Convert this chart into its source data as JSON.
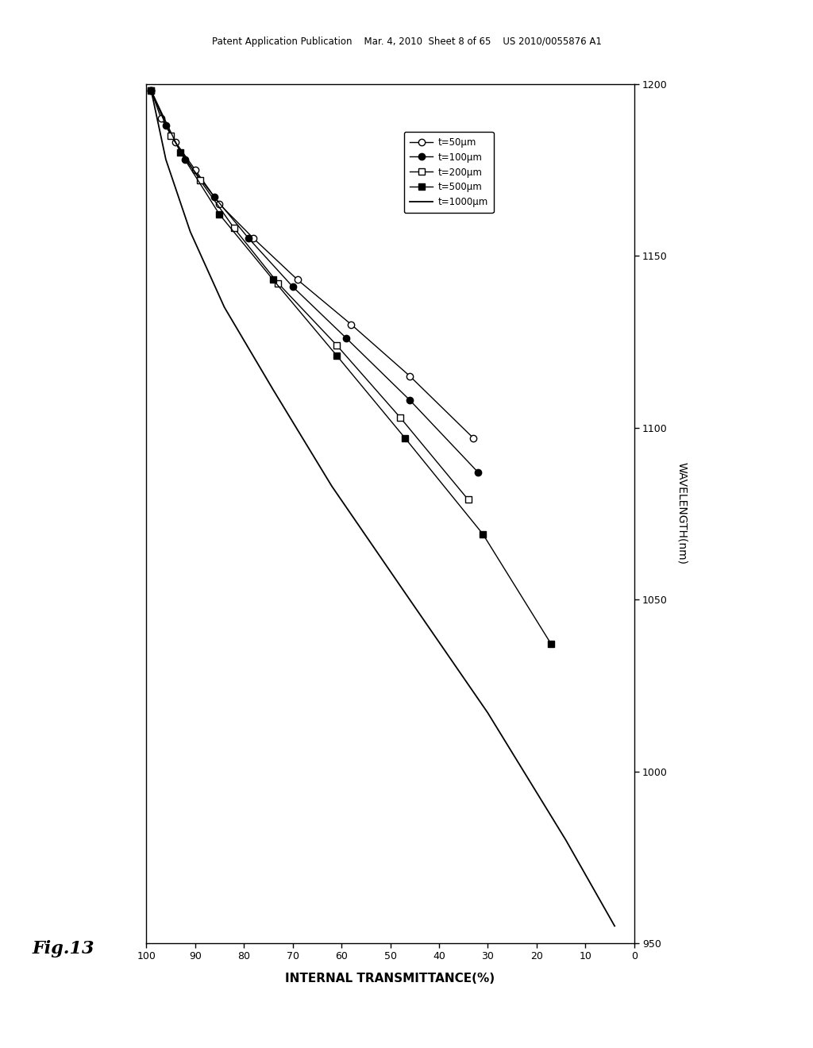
{
  "title_header": "Patent Application Publication    Mar. 4, 2010  Sheet 8 of 65    US 2010/0055876 A1",
  "fig_label": "Fig.13",
  "xlabel": "INTERNAL TRANSMITTANCE(%)",
  "ylabel": "WAVELENGTH(nm)",
  "xlim": [
    100,
    0
  ],
  "ylim": [
    950,
    1200
  ],
  "xticks": [
    100,
    90,
    80,
    70,
    60,
    50,
    40,
    30,
    20,
    10,
    0
  ],
  "xticklabels": [
    "100",
    "90",
    "80",
    "70",
    "60",
    "50",
    "40",
    "30",
    "20",
    "10",
    "0"
  ],
  "yticks": [
    950,
    1000,
    1050,
    1100,
    1150,
    1200
  ],
  "yticklabels": [
    "950",
    "1000",
    "1050",
    "1100",
    "1150",
    "1200"
  ],
  "background_color": "#ffffff",
  "series": [
    {
      "label": "t=50μm",
      "marker": "o",
      "fillstyle": "none",
      "color": "black",
      "linewidth": 1.0,
      "markersize": 6,
      "transmittance": [
        99,
        97,
        94,
        90,
        85,
        78,
        69,
        58,
        46,
        33
      ],
      "wavelength": [
        1198,
        1190,
        1183,
        1175,
        1165,
        1155,
        1143,
        1130,
        1115,
        1097
      ]
    },
    {
      "label": "t=100μm",
      "marker": "o",
      "fillstyle": "full",
      "color": "black",
      "linewidth": 1.0,
      "markersize": 6,
      "transmittance": [
        99,
        96,
        92,
        86,
        79,
        70,
        59,
        46,
        32
      ],
      "wavelength": [
        1198,
        1188,
        1178,
        1167,
        1155,
        1141,
        1126,
        1108,
        1087
      ]
    },
    {
      "label": "t=200μm",
      "marker": "s",
      "fillstyle": "none",
      "color": "black",
      "linewidth": 1.0,
      "markersize": 6,
      "transmittance": [
        99,
        95,
        89,
        82,
        73,
        61,
        48,
        34
      ],
      "wavelength": [
        1198,
        1185,
        1172,
        1158,
        1142,
        1124,
        1103,
        1079
      ]
    },
    {
      "label": "t=500μm",
      "marker": "s",
      "fillstyle": "full",
      "color": "black",
      "linewidth": 1.0,
      "markersize": 6,
      "transmittance": [
        99,
        93,
        85,
        74,
        61,
        47,
        31,
        17
      ],
      "wavelength": [
        1198,
        1180,
        1162,
        1143,
        1121,
        1097,
        1069,
        1037
      ]
    },
    {
      "label": "t=1000μm",
      "marker": null,
      "fillstyle": null,
      "color": "black",
      "linewidth": 1.3,
      "markersize": 0,
      "transmittance": [
        99,
        96,
        91,
        84,
        74,
        62,
        47,
        30,
        14,
        4
      ],
      "wavelength": [
        1198,
        1178,
        1157,
        1135,
        1111,
        1083,
        1052,
        1017,
        980,
        955
      ]
    }
  ]
}
